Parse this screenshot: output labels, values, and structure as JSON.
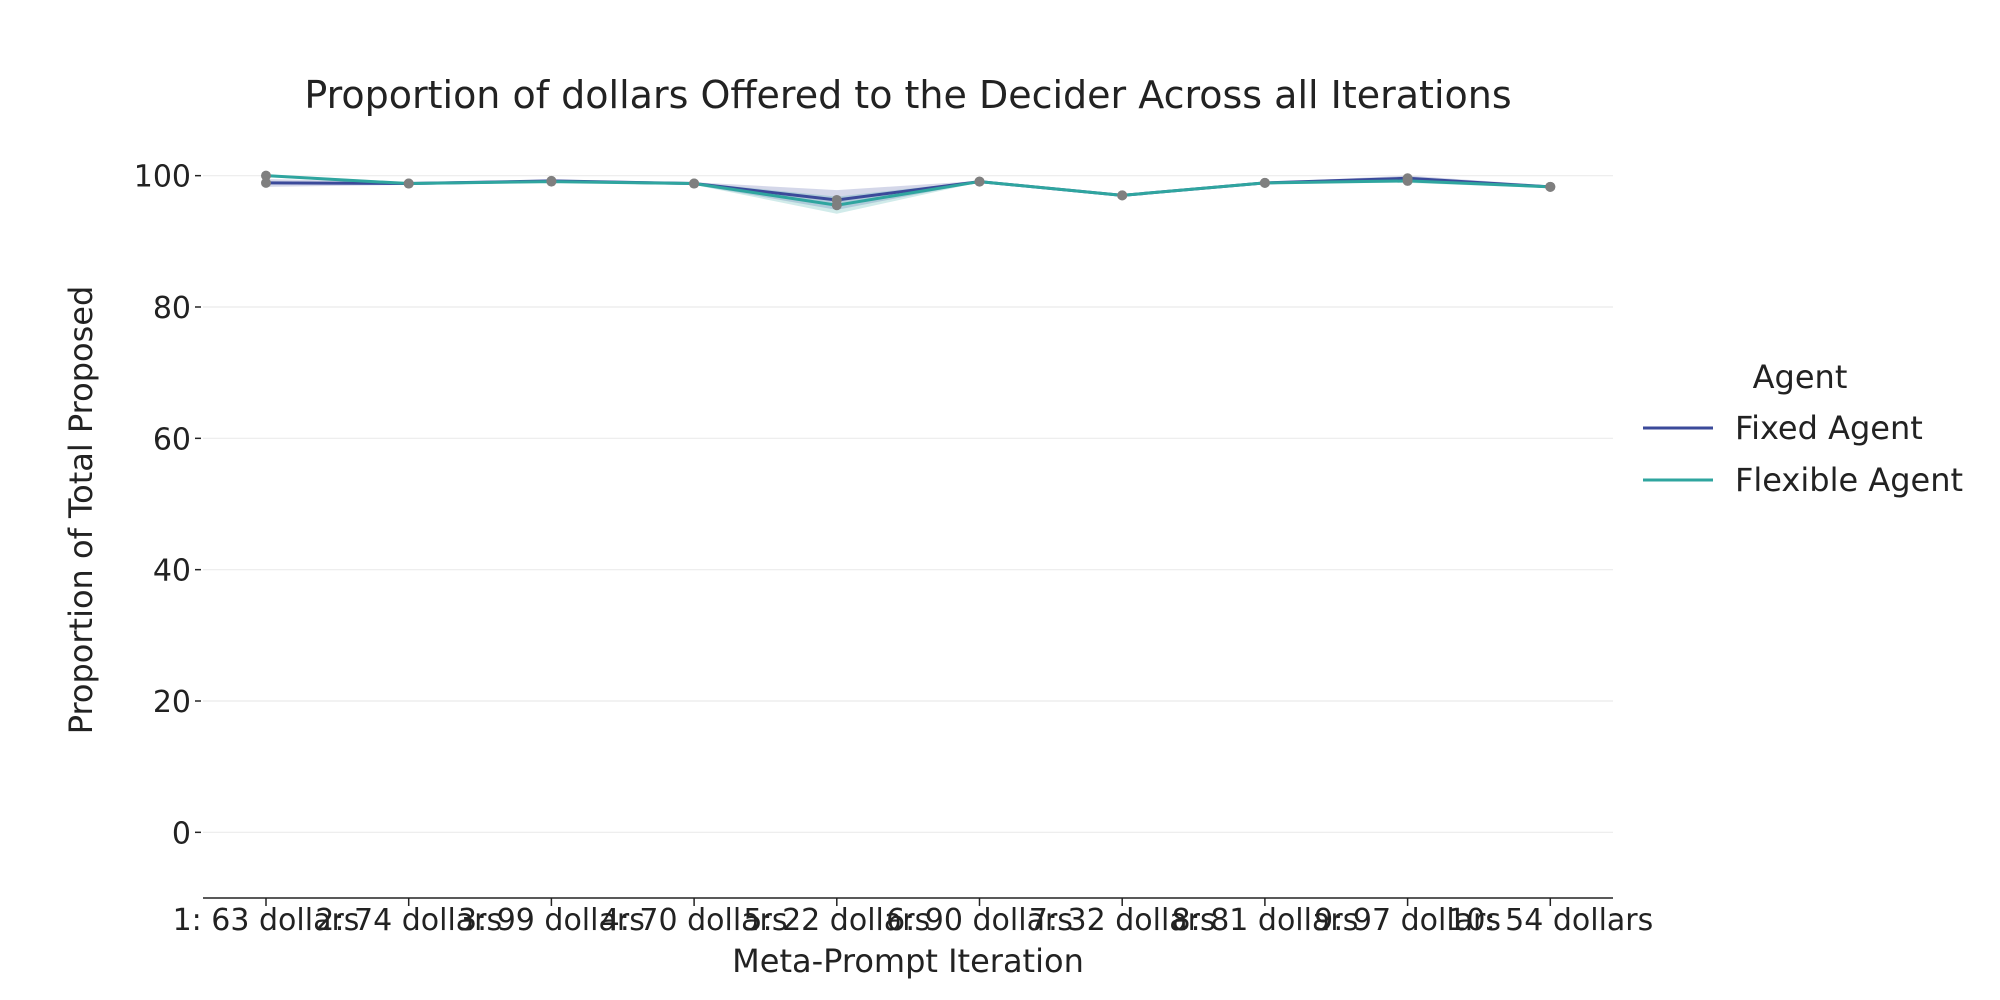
{
  "chart_data": {
    "type": "line",
    "title": "Proportion of dollars Offered to the Decider Across all Iterations",
    "xlabel": "Meta-Prompt Iteration",
    "ylabel": "Proportion of Total Proposed",
    "categories": [
      "1: 63 dollars",
      "2: 74 dollars",
      "3: 99 dollars",
      "4: 70 dollars",
      "5: 22 dollars",
      "6: 90 dollars",
      "7: 32 dollars",
      "8: 81 dollars",
      "9: 97 dollars",
      "10: 54 dollars"
    ],
    "yticks": [
      0,
      20,
      40,
      60,
      80,
      100
    ],
    "ylim": [
      -10,
      110
    ],
    "grid": true,
    "legend": {
      "title": "Agent",
      "placement": "right"
    },
    "series": [
      {
        "name": "Fixed Agent",
        "color": "#3b4a9a",
        "values": [
          98.9,
          98.8,
          99.2,
          98.8,
          96.3,
          99.1,
          97.0,
          98.9,
          99.6,
          98.3
        ],
        "ci_low": [
          98.3,
          98.6,
          99.0,
          98.6,
          94.8,
          99.0,
          96.8,
          98.8,
          99.2,
          98.1
        ],
        "ci_high": [
          99.5,
          99.0,
          99.4,
          99.0,
          97.8,
          99.2,
          97.2,
          99.0,
          100.0,
          98.5
        ]
      },
      {
        "name": "Flexible Agent",
        "color": "#2fa59f",
        "values": [
          100.0,
          98.8,
          99.1,
          98.8,
          95.5,
          99.1,
          97.0,
          98.9,
          99.2,
          98.3
        ],
        "ci_low": [
          99.8,
          98.6,
          98.9,
          98.6,
          94.2,
          99.0,
          96.8,
          98.8,
          98.9,
          98.1
        ],
        "ci_high": [
          100.2,
          99.0,
          99.3,
          99.0,
          96.8,
          99.2,
          97.2,
          99.0,
          99.5,
          98.5
        ]
      }
    ]
  }
}
